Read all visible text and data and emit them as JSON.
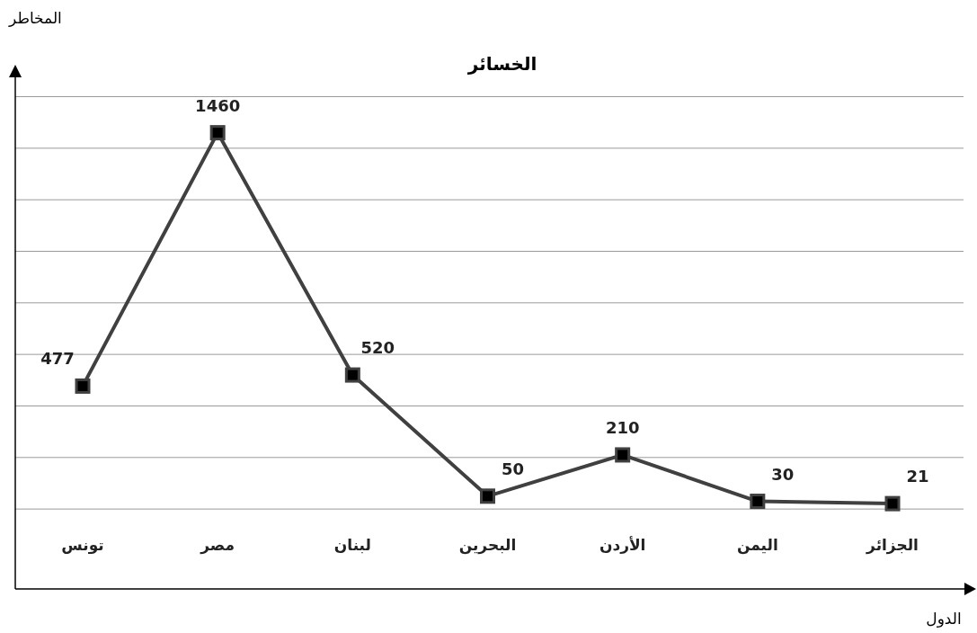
{
  "chart_data": {
    "type": "line",
    "title": "الخسائر",
    "xlabel": "الدول",
    "ylabel": "المخاطر",
    "categories": [
      "تونس",
      "مصر",
      "لبنان",
      "البحرين",
      "الأردن",
      "اليمن",
      "الجزائر"
    ],
    "series": [
      {
        "color": "#404040",
        "values": [
          477,
          1460,
          520,
          50,
          210,
          30,
          21
        ]
      }
    ],
    "ylim": [
      -310,
      1675
    ],
    "yticks": [
      {
        "value": 0,
        "label": null
      },
      {
        "value": 200,
        "label": null
      },
      {
        "value": 400,
        "label": null
      },
      {
        "value": 600,
        "label": null
      },
      {
        "value": 800,
        "label": null
      },
      {
        "value": 1000,
        "label": null
      },
      {
        "value": 1200,
        "label": null
      },
      {
        "value": 1400,
        "label": null
      },
      {
        "value": 1600,
        "label": null
      }
    ],
    "grid": "y",
    "marker": "square",
    "line_style": "solid",
    "data_labels": true,
    "tick_labels": "x"
  }
}
